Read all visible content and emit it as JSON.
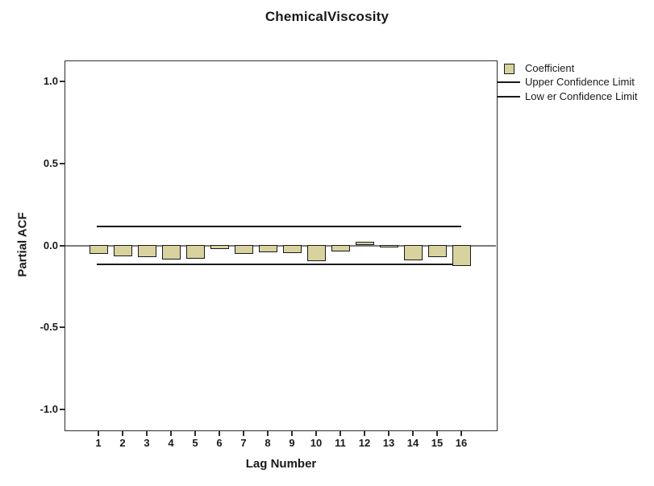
{
  "figure": {
    "title": "ChemicalViscosity",
    "x_axis_label": "Lag Number",
    "y_axis_label": "Partial ACF"
  },
  "legend": {
    "items": [
      {
        "label": "Coefficient",
        "marker": "box"
      },
      {
        "label": "Upper Confidence Limit",
        "marker": "line"
      },
      {
        "label": "Low er Confidence Limit",
        "marker": "line"
      }
    ]
  },
  "chart_data": {
    "type": "bar",
    "title": "ChemicalViscosity",
    "xlabel": "Lag Number",
    "ylabel": "Partial ACF",
    "series_name": "Coefficient",
    "categories": [
      1,
      2,
      3,
      4,
      5,
      6,
      7,
      8,
      9,
      10,
      11,
      12,
      13,
      14,
      15,
      16
    ],
    "values": [
      -0.055,
      -0.07,
      -0.075,
      -0.09,
      -0.085,
      -0.025,
      -0.055,
      -0.045,
      -0.05,
      -0.1,
      -0.04,
      0.02,
      -0.01,
      -0.095,
      -0.075,
      -0.13
    ],
    "upper_confidence_limit": 0.115,
    "lower_confidence_limit": -0.115,
    "yticks": [
      1.0,
      0.5,
      0.0,
      -0.5,
      -1.0
    ],
    "ytick_labels": [
      "1.0",
      "0.5",
      "0.0",
      "-0.5",
      "-1.0"
    ],
    "ylim": [
      -1.13,
      1.13
    ],
    "grid": false,
    "legend_position": "outside-top-right",
    "colors": {
      "bar_fill": "#D8D29F",
      "bar_border": "#1a1a1a",
      "zero_line": "#7a7a7a",
      "confidence_line": "#1a1a1a",
      "frame": "#2e2e2e",
      "background": "#ffffff"
    }
  }
}
